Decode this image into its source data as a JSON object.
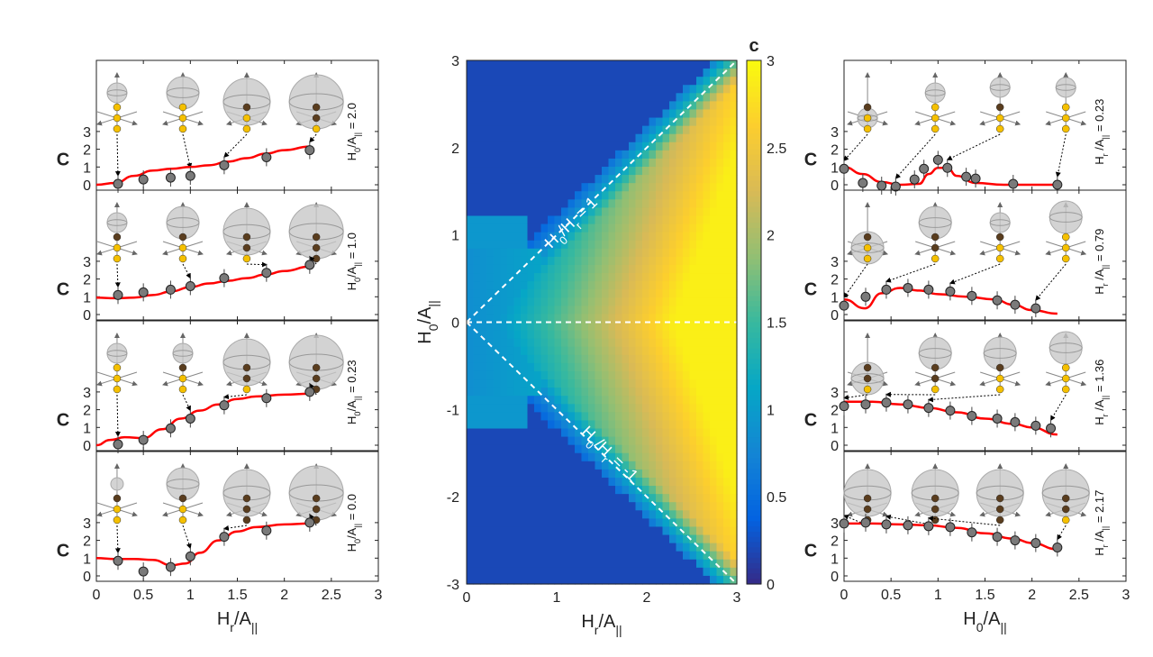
{
  "chart_data": [
    {
      "type": "scatter",
      "side": "left",
      "xlabel": "H_r/A_||",
      "ylabel": "C",
      "xlim": [
        0,
        3
      ],
      "ylim": [
        0,
        3
      ],
      "xticks": [
        "0",
        "0.5",
        "1",
        "1.5",
        "2",
        "2.5",
        "3"
      ],
      "yticks": [
        "0",
        "1",
        "2",
        "3"
      ],
      "panels": [
        {
          "label": "H_0/A_|| = 2.0",
          "x": [
            0.23,
            0.5,
            0.79,
            1.0,
            1.36,
            1.81,
            2.27
          ],
          "y": [
            0.05,
            0.3,
            0.4,
            0.5,
            1.1,
            1.55,
            1.95
          ],
          "curve": {
            "x": [
              0,
              0.2,
              0.4,
              0.6,
              0.8,
              1.0,
              1.2,
              1.4,
              1.6,
              1.8,
              2.0,
              2.27
            ],
            "y": [
              0,
              0.1,
              0.5,
              0.8,
              0.9,
              1.0,
              1.1,
              1.3,
              1.5,
              1.75,
              1.95,
              2.15
            ]
          },
          "insets": [
            {
              "x": 0.22,
              "dark": 0,
              "sphere": 1
            },
            {
              "x": 0.92,
              "dark": 0,
              "sphere": 2
            },
            {
              "x": 1.6,
              "dark": 1,
              "sphere": 3
            },
            {
              "x": 2.34,
              "dark": 2,
              "sphere": 4
            }
          ],
          "arrow_to": [
            0.23,
            1.0,
            1.36,
            2.27
          ]
        },
        {
          "label": "H_0/A_|| = 1.0",
          "x": [
            0.23,
            0.5,
            0.79,
            1.0,
            1.36,
            1.81,
            2.27
          ],
          "y": [
            1.1,
            1.25,
            1.4,
            1.6,
            2.05,
            2.35,
            2.8
          ],
          "curve": {
            "x": [
              0,
              0.2,
              0.4,
              0.6,
              0.8,
              1.0,
              1.2,
              1.4,
              1.6,
              1.8,
              2.0,
              2.27
            ],
            "y": [
              0.95,
              0.92,
              0.95,
              1.1,
              1.3,
              1.55,
              1.75,
              1.9,
              2.05,
              2.25,
              2.45,
              2.7
            ]
          },
          "insets": [
            {
              "x": 0.22,
              "dark": 1,
              "sphere": 1
            },
            {
              "x": 0.92,
              "dark": 1,
              "sphere": 2
            },
            {
              "x": 1.6,
              "dark": 2,
              "sphere": 3
            },
            {
              "x": 2.34,
              "dark": 3,
              "sphere": 4
            }
          ],
          "arrow_to": [
            0.23,
            1.0,
            1.81,
            2.27
          ]
        },
        {
          "label": "H_0/A_|| = 0.23",
          "x": [
            0.23,
            0.5,
            0.79,
            1.0,
            1.36,
            1.81,
            2.27
          ],
          "y": [
            0.05,
            0.3,
            0.95,
            1.5,
            2.25,
            2.65,
            3.0
          ],
          "curve": {
            "x": [
              0,
              0.15,
              0.3,
              0.5,
              0.7,
              0.9,
              1.1,
              1.3,
              1.5,
              1.7,
              2.0,
              2.27
            ],
            "y": [
              0,
              0.3,
              0.45,
              0.4,
              0.9,
              1.5,
              1.95,
              2.3,
              2.6,
              2.75,
              2.85,
              2.9
            ]
          },
          "insets": [
            {
              "x": 0.22,
              "dark": 0,
              "sphere": 1
            },
            {
              "x": 0.92,
              "dark": 1,
              "sphere": 1
            },
            {
              "x": 1.6,
              "dark": 2,
              "sphere": 3
            },
            {
              "x": 2.34,
              "dark": 3,
              "sphere": 4
            }
          ],
          "arrow_to": [
            0.23,
            1.0,
            1.36,
            2.27
          ]
        },
        {
          "label": "H_0/A_|| = 0.0",
          "x": [
            0.23,
            0.5,
            0.79,
            1.0,
            1.36,
            1.81,
            2.27
          ],
          "y": [
            0.85,
            0.25,
            0.5,
            1.1,
            2.2,
            2.55,
            3.0
          ],
          "curve": {
            "x": [
              0,
              0.2,
              0.4,
              0.6,
              0.8,
              0.95,
              1.1,
              1.3,
              1.5,
              1.7,
              2.0,
              2.27
            ],
            "y": [
              1.0,
              0.95,
              0.95,
              0.9,
              0.6,
              0.7,
              1.3,
              2.0,
              2.5,
              2.75,
              2.9,
              2.95
            ]
          },
          "insets": [
            {
              "x": 0.22,
              "dark": 1,
              "sphere": 0
            },
            {
              "x": 0.92,
              "dark": 1,
              "sphere": 2
            },
            {
              "x": 1.6,
              "dark": 3,
              "sphere": 3
            },
            {
              "x": 2.34,
              "dark": 3,
              "sphere": 4
            }
          ],
          "arrow_to": [
            0.23,
            1.0,
            1.36,
            2.27
          ]
        }
      ]
    },
    {
      "type": "heatmap",
      "side": "center",
      "xlabel": "H_r/A_||",
      "ylabel": "H_0/A_||",
      "xlim": [
        0,
        3
      ],
      "ylim": [
        -3,
        3
      ],
      "xticks": [
        "0",
        "1",
        "2",
        "3"
      ],
      "yticks": [
        "-3",
        "-2",
        "-1",
        "0",
        "1",
        "2",
        "3"
      ],
      "colorbar": {
        "title": "c",
        "range": [
          0,
          3
        ],
        "ticks": [
          "0",
          "0.5",
          "1",
          "1.5",
          "2",
          "2.5",
          "3"
        ],
        "colormap": "parula"
      },
      "annotations": [
        "H_0/H_r = 1",
        "H_0/H_r = -1"
      ],
      "dashed_lines": [
        "H_0 = H_r",
        "H_0 = 0",
        "H_0 = -H_r"
      ]
    },
    {
      "type": "scatter",
      "side": "right",
      "xlabel": "H_0/A_||",
      "ylabel": "C",
      "xlim": [
        0,
        3
      ],
      "ylim": [
        0,
        3
      ],
      "xticks": [
        "0",
        "0.5",
        "1",
        "1.5",
        "2",
        "2.5",
        "3"
      ],
      "yticks": [
        "0",
        "1",
        "2",
        "3"
      ],
      "panels": [
        {
          "label": "H_r /A_|| = 0.23",
          "x": [
            0,
            0.2,
            0.4,
            0.55,
            0.75,
            0.85,
            1.0,
            1.1,
            1.3,
            1.4,
            1.8,
            2.27
          ],
          "y": [
            0.9,
            0.1,
            -0.05,
            -0.1,
            0.3,
            0.9,
            1.4,
            0.95,
            0.45,
            0.35,
            0.05,
            0.0
          ],
          "curve": {
            "x": [
              0,
              0.2,
              0.4,
              0.6,
              0.8,
              0.9,
              1.0,
              1.1,
              1.2,
              1.4,
              1.7,
              2.27
            ],
            "y": [
              1.0,
              0.6,
              0.15,
              0.0,
              0.05,
              0.6,
              0.95,
              0.95,
              0.5,
              0.1,
              0.0,
              0.0
            ]
          },
          "insets": [
            {
              "x": 0.25,
              "dark": 1,
              "sphere": 1,
              "pos": 1
            },
            {
              "x": 0.97,
              "dark": 0,
              "sphere": 1,
              "pos": 0
            },
            {
              "x": 1.66,
              "dark": 1,
              "sphere": 1,
              "pos": -1
            },
            {
              "x": 2.36,
              "dark": 0,
              "sphere": 1,
              "pos": -1
            }
          ],
          "arrow_to": [
            0,
            0.55,
            1.1,
            2.27
          ]
        },
        {
          "label": "H_r /A_|| = 0.79",
          "x": [
            0,
            0.23,
            0.45,
            0.68,
            0.9,
            1.13,
            1.36,
            1.63,
            1.82,
            2.04
          ],
          "y": [
            0.5,
            1.0,
            1.4,
            1.5,
            1.4,
            1.3,
            1.05,
            0.8,
            0.55,
            0.35
          ],
          "curve": {
            "x": [
              0,
              0.22,
              0.4,
              0.6,
              0.8,
              1.0,
              1.3,
              1.6,
              1.8,
              2.0,
              2.27
            ],
            "y": [
              0.85,
              0.35,
              1.2,
              1.5,
              1.35,
              1.15,
              1.0,
              0.85,
              0.55,
              0.25,
              0.05
            ]
          },
          "insets": [
            {
              "x": 0.25,
              "dark": 1,
              "sphere": 2,
              "pos": 1
            },
            {
              "x": 0.97,
              "dark": 2,
              "sphere": 2,
              "pos": 0
            },
            {
              "x": 1.66,
              "dark": 1,
              "sphere": 1,
              "pos": 0
            },
            {
              "x": 2.36,
              "dark": 0,
              "sphere": 2,
              "pos": -1
            }
          ],
          "arrow_to": [
            0,
            0.45,
            1.13,
            2.04
          ]
        },
        {
          "label": "H_r /A_|| = 1.36",
          "x": [
            0,
            0.23,
            0.45,
            0.68,
            0.9,
            1.13,
            1.36,
            1.63,
            1.82,
            2.04,
            2.2
          ],
          "y": [
            2.2,
            2.3,
            2.4,
            2.3,
            2.1,
            1.95,
            1.65,
            1.5,
            1.3,
            1.1,
            0.95
          ],
          "curve": {
            "x": [
              0,
              0.3,
              0.6,
              0.9,
              1.2,
              1.5,
              1.8,
              2.0,
              2.27
            ],
            "y": [
              2.45,
              2.45,
              2.3,
              2.1,
              1.85,
              1.5,
              1.2,
              1.0,
              0.6
            ]
          },
          "insets": [
            {
              "x": 0.25,
              "dark": 2,
              "sphere": 2,
              "pos": 1
            },
            {
              "x": 0.97,
              "dark": 2,
              "sphere": 2,
              "pos": 0
            },
            {
              "x": 1.66,
              "dark": 1,
              "sphere": 2,
              "pos": 0
            },
            {
              "x": 2.36,
              "dark": 0,
              "sphere": 2,
              "pos": -1
            }
          ],
          "arrow_to": [
            0,
            0.45,
            0.9,
            2.2
          ]
        },
        {
          "label": "H_r /A_|| = 2.17",
          "x": [
            0,
            0.23,
            0.45,
            0.68,
            0.9,
            1.13,
            1.36,
            1.63,
            1.82,
            2.04,
            2.27
          ],
          "y": [
            2.95,
            3.0,
            2.9,
            2.85,
            2.8,
            2.75,
            2.45,
            2.2,
            2.0,
            1.85,
            1.6
          ],
          "curve": {
            "x": [
              0,
              0.3,
              0.6,
              0.9,
              1.2,
              1.5,
              1.8,
              2.0,
              2.27
            ],
            "y": [
              2.95,
              2.95,
              2.9,
              2.85,
              2.7,
              2.4,
              2.1,
              1.85,
              1.5
            ]
          },
          "insets": [
            {
              "x": 0.25,
              "dark": 3,
              "sphere": 3,
              "pos": 0
            },
            {
              "x": 0.97,
              "dark": 3,
              "sphere": 3,
              "pos": 0
            },
            {
              "x": 1.66,
              "dark": 3,
              "sphere": 3,
              "pos": 0
            },
            {
              "x": 2.36,
              "dark": 2,
              "sphere": 3,
              "pos": 0
            }
          ],
          "arrow_to": [
            0,
            0.45,
            0.9,
            2.27
          ]
        }
      ]
    }
  ],
  "colors": {
    "curve": "#ff0000",
    "points": "#7a7a7a",
    "spin_up": "#f5c000",
    "spin_dark": "#5a3d1e",
    "sphere": "#c8c8c8"
  }
}
